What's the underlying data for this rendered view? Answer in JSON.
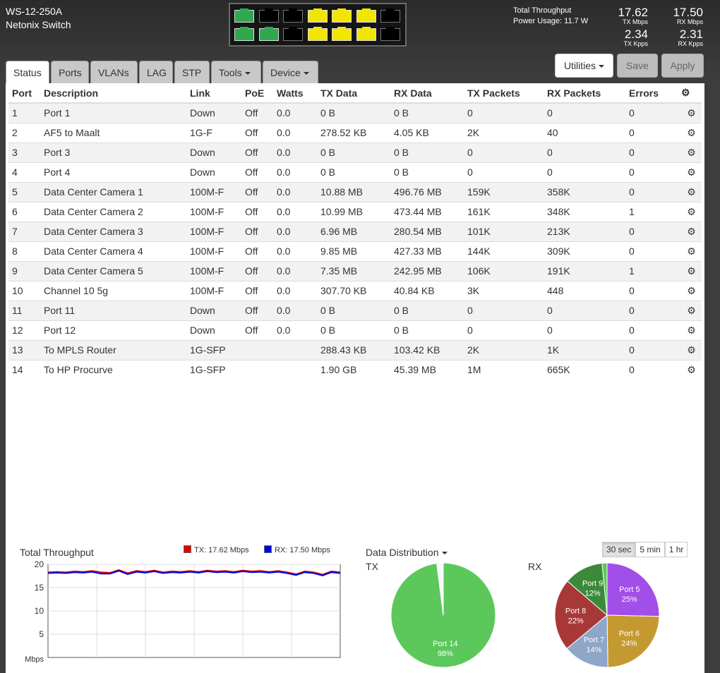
{
  "device": {
    "model": "WS-12-250A",
    "name": "Netonix Switch"
  },
  "port_panel": {
    "top_row": [
      {
        "port": "1",
        "color": "#2fa84f"
      },
      {
        "port": "3",
        "color": "#000000"
      },
      {
        "port": "5",
        "color": "#000000"
      },
      {
        "port": "7",
        "color": "#f2e600"
      },
      {
        "port": "9",
        "color": "#f2e600"
      },
      {
        "port": "11",
        "color": "#f2e600"
      },
      {
        "port": "13",
        "color": "#000000"
      }
    ],
    "bottom_row": [
      {
        "port": "2",
        "color": "#2fa84f"
      },
      {
        "port": "4",
        "color": "#2fa84f"
      },
      {
        "port": "6",
        "color": "#000000"
      },
      {
        "port": "8",
        "color": "#f2e600"
      },
      {
        "port": "10",
        "color": "#f2e600"
      },
      {
        "port": "12",
        "color": "#f2e600"
      },
      {
        "port": "14",
        "color": "#000000"
      }
    ]
  },
  "header_stats": {
    "throughput_label": "Total Throughput",
    "power_usage": "Power Usage: 11.7 W",
    "tx_mbps": "17.62",
    "tx_mbps_label": "TX Mbps",
    "rx_mbps": "17.50",
    "rx_mbps_label": "RX Mbps",
    "tx_kpps": "2.34",
    "tx_kpps_label": "TX Kpps",
    "rx_kpps": "2.31",
    "rx_kpps_label": "RX Kpps"
  },
  "tabs": [
    {
      "label": "Status",
      "active": true
    },
    {
      "label": "Ports"
    },
    {
      "label": "VLANs"
    },
    {
      "label": "LAG"
    },
    {
      "label": "STP"
    },
    {
      "label": "Tools",
      "dropdown": true
    },
    {
      "label": "Device",
      "dropdown": true
    }
  ],
  "toolbar": {
    "utilities_label": "Utilities",
    "save_label": "Save",
    "apply_label": "Apply"
  },
  "table": {
    "columns": [
      "Port",
      "Description",
      "Link",
      "PoE",
      "Watts",
      "TX Data",
      "RX Data",
      "TX Packets",
      "RX Packets",
      "Errors"
    ],
    "rows": [
      [
        "1",
        "Port 1",
        "Down",
        "Off",
        "0.0",
        "0 B",
        "0 B",
        "0",
        "0",
        "0"
      ],
      [
        "2",
        "AF5 to Maalt",
        "1G-F",
        "Off",
        "0.0",
        "278.52 KB",
        "4.05 KB",
        "2K",
        "40",
        "0"
      ],
      [
        "3",
        "Port 3",
        "Down",
        "Off",
        "0.0",
        "0 B",
        "0 B",
        "0",
        "0",
        "0"
      ],
      [
        "4",
        "Port 4",
        "Down",
        "Off",
        "0.0",
        "0 B",
        "0 B",
        "0",
        "0",
        "0"
      ],
      [
        "5",
        "Data Center Camera 1",
        "100M-F",
        "Off",
        "0.0",
        "10.88 MB",
        "496.76 MB",
        "159K",
        "358K",
        "0"
      ],
      [
        "6",
        "Data Center Camera 2",
        "100M-F",
        "Off",
        "0.0",
        "10.99 MB",
        "473.44 MB",
        "161K",
        "348K",
        "1"
      ],
      [
        "7",
        "Data Center Camera 3",
        "100M-F",
        "Off",
        "0.0",
        "6.96 MB",
        "280.54 MB",
        "101K",
        "213K",
        "0"
      ],
      [
        "8",
        "Data Center Camera 4",
        "100M-F",
        "Off",
        "0.0",
        "9.85 MB",
        "427.33 MB",
        "144K",
        "309K",
        "0"
      ],
      [
        "9",
        "Data Center Camera 5",
        "100M-F",
        "Off",
        "0.0",
        "7.35 MB",
        "242.95 MB",
        "106K",
        "191K",
        "1"
      ],
      [
        "10",
        "Channel 10 5g",
        "100M-F",
        "Off",
        "0.0",
        "307.70 KB",
        "40.84 KB",
        "3K",
        "448",
        "0"
      ],
      [
        "11",
        "Port 11",
        "Down",
        "Off",
        "0.0",
        "0 B",
        "0 B",
        "0",
        "0",
        "0"
      ],
      [
        "12",
        "Port 12",
        "Down",
        "Off",
        "0.0",
        "0 B",
        "0 B",
        "0",
        "0",
        "0"
      ],
      [
        "13",
        "To MPLS Router",
        "1G-SFP",
        "",
        "",
        "288.43 KB",
        "103.42 KB",
        "2K",
        "1K",
        "0"
      ],
      [
        "14",
        "To HP Procurve",
        "1G-SFP",
        "",
        "",
        "1.90 GB",
        "45.39 MB",
        "1M",
        "665K",
        "0"
      ]
    ]
  },
  "throughput_chart": {
    "title": "Total Throughput",
    "tx_legend": "TX: 17.62 Mbps",
    "rx_legend": "RX: 17.50 Mbps",
    "tx_color": "#e00000",
    "rx_color": "#0000e0"
  },
  "distribution": {
    "title": "Data Distribution",
    "tx_label": "TX",
    "rx_label": "RX",
    "ranges": [
      "30 sec",
      "5 min",
      "1 hr"
    ],
    "active_range": "30 sec"
  },
  "chart_data": [
    {
      "type": "line",
      "title": "Total Throughput",
      "ylabel": "Mbps",
      "ylim": [
        0,
        20
      ],
      "yticks": [
        5,
        10,
        15,
        20
      ],
      "grid": true,
      "series": [
        {
          "name": "TX: 17.62 Mbps",
          "color": "#e00000",
          "values": [
            18.3,
            18.4,
            18.3,
            18.5,
            18.4,
            18.6,
            18.3,
            18.2,
            18.8,
            18.1,
            18.6,
            18.4,
            18.7,
            18.3,
            18.5,
            18.4,
            18.6,
            18.4,
            18.7,
            18.5,
            18.6,
            18.4,
            18.7,
            18.5,
            18.6,
            18.4,
            18.6,
            18.3,
            17.9,
            18.5,
            18.3,
            17.8,
            18.5,
            18.3
          ]
        },
        {
          "name": "RX: 17.50 Mbps",
          "color": "#0000e0",
          "values": [
            18.1,
            18.2,
            18.1,
            18.3,
            18.2,
            18.4,
            18.0,
            18.0,
            18.6,
            17.9,
            18.4,
            18.2,
            18.5,
            18.1,
            18.3,
            18.2,
            18.4,
            18.2,
            18.5,
            18.3,
            18.4,
            18.2,
            18.5,
            18.3,
            18.4,
            18.2,
            18.4,
            18.1,
            17.7,
            18.3,
            18.1,
            17.6,
            18.3,
            18.1
          ]
        }
      ]
    },
    {
      "type": "pie",
      "title": "TX",
      "slices": [
        {
          "label": "Port 14",
          "value": 98,
          "color": "#5cc85c"
        },
        {
          "label": "",
          "value": 0.8,
          "color": "#f2f2f2"
        },
        {
          "label": "",
          "value": 0.6,
          "color": "#f2f2f2"
        },
        {
          "label": "",
          "value": 0.6,
          "color": "#f2f2f2"
        }
      ]
    },
    {
      "type": "pie",
      "title": "RX",
      "slices": [
        {
          "label": "Port 5",
          "value": 25,
          "color": "#a24ee8"
        },
        {
          "label": "Port 6",
          "value": 24,
          "color": "#c49a30"
        },
        {
          "label": "Port 7",
          "value": 14,
          "color": "#8ea6c8"
        },
        {
          "label": "Port 8",
          "value": 22,
          "color": "#a83838"
        },
        {
          "label": "Port 9",
          "value": 12,
          "color": "#3a8a3a"
        },
        {
          "label": "",
          "value": 1.5,
          "color": "#5cc85c"
        }
      ]
    }
  ]
}
